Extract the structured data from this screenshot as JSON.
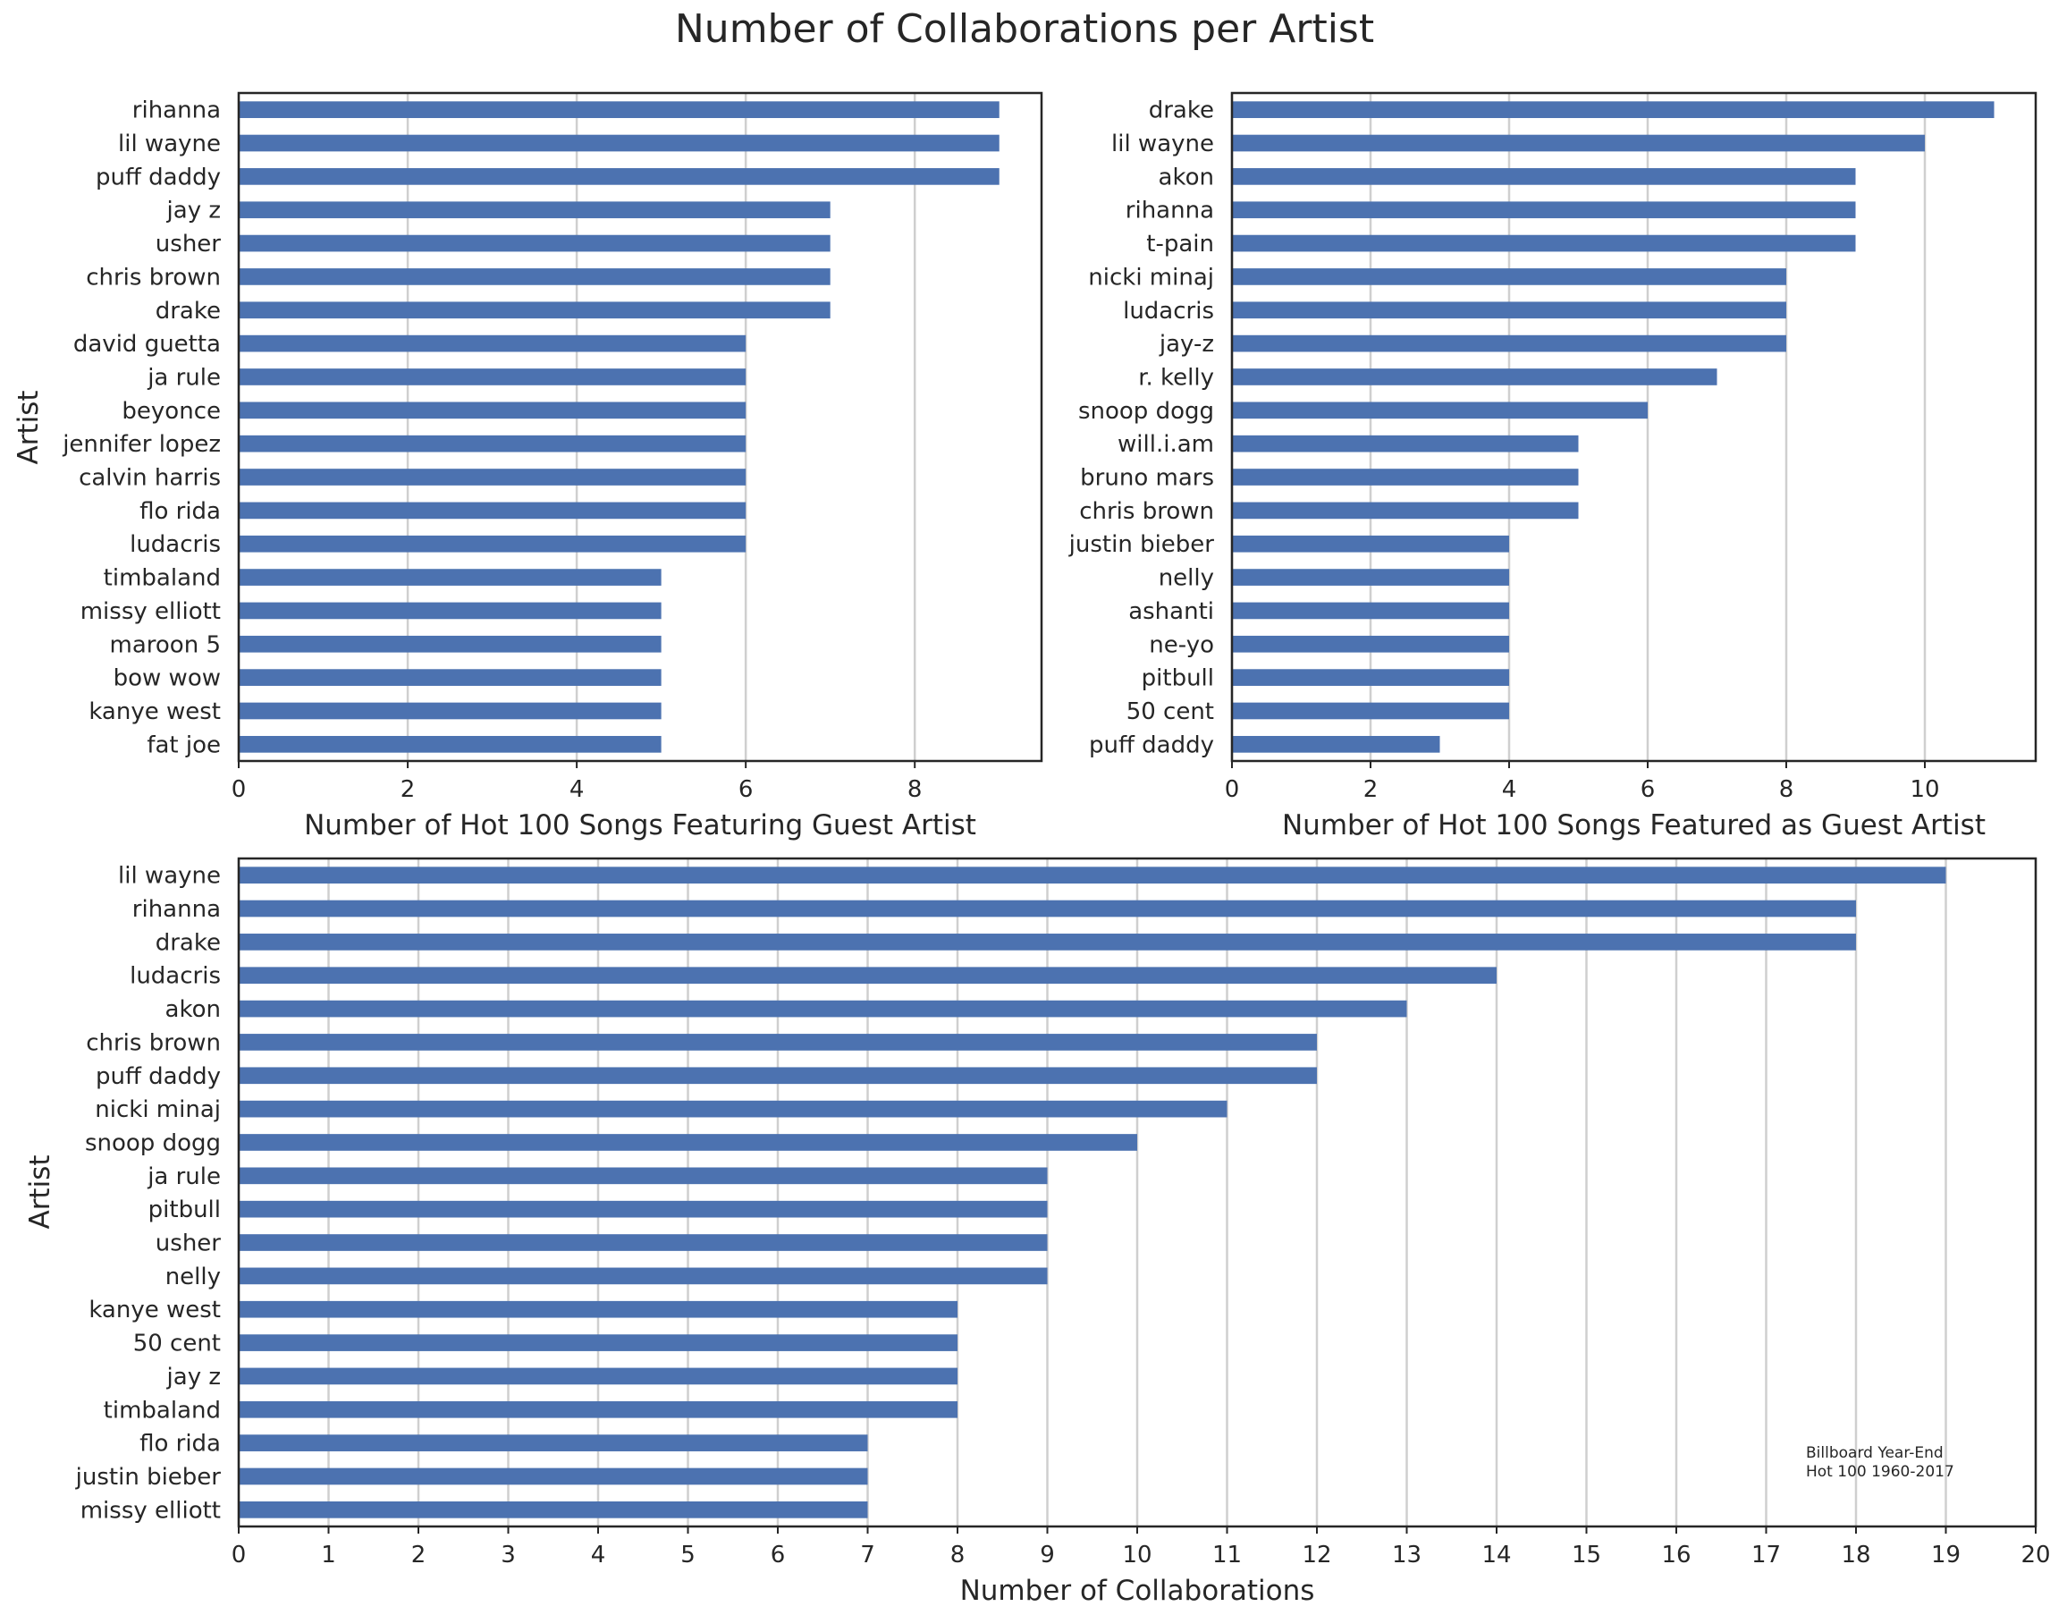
{
  "figure": {
    "suptitle": "Number of Collaborations per Artist",
    "bar_color": "#4c72b0",
    "grid_color": "#cfcfcf",
    "annotation": [
      "Billboard Year-End",
      "Hot 100 1960-2017"
    ]
  },
  "chart_data": [
    {
      "type": "bar",
      "orientation": "horizontal",
      "xlabel": "Number of Hot 100 Songs Featuring Guest Artist",
      "ylabel": "Artist",
      "xlim": [
        0,
        9.5
      ],
      "xticks": [
        0,
        2,
        4,
        6,
        8
      ],
      "grid": "vertical",
      "categories": [
        "rihanna",
        "lil wayne",
        "puff daddy",
        "jay z",
        "usher",
        "chris brown",
        "drake",
        "david guetta",
        "ja rule",
        "beyonce",
        "jennifer lopez",
        "calvin harris",
        "flo rida",
        "ludacris",
        "timbaland",
        "missy elliott",
        "maroon 5",
        "bow wow",
        "kanye west",
        "fat joe"
      ],
      "values": [
        9,
        9,
        9,
        7,
        7,
        7,
        7,
        6,
        6,
        6,
        6,
        6,
        6,
        6,
        5,
        5,
        5,
        5,
        5,
        5
      ]
    },
    {
      "type": "bar",
      "orientation": "horizontal",
      "xlabel": "Number of Hot 100 Songs Featured as Guest Artist",
      "ylabel": "",
      "xlim": [
        0,
        11.6
      ],
      "xticks": [
        0,
        2,
        4,
        6,
        8,
        10
      ],
      "grid": "vertical",
      "categories": [
        "drake",
        "lil wayne",
        "akon",
        "rihanna",
        "t-pain",
        "nicki minaj",
        "ludacris",
        "jay-z",
        "r. kelly",
        "snoop dogg",
        "will.i.am",
        "bruno mars",
        "chris brown",
        "justin bieber",
        "nelly",
        "ashanti",
        "ne-yo",
        "pitbull",
        "50 cent",
        "puff daddy"
      ],
      "values": [
        11,
        10,
        9,
        9,
        9,
        8,
        8,
        8,
        7,
        6,
        5,
        5,
        5,
        4,
        4,
        4,
        4,
        4,
        4,
        3
      ]
    },
    {
      "type": "bar",
      "orientation": "horizontal",
      "xlabel": "Number of Collaborations",
      "ylabel": "Artist",
      "xlim": [
        0,
        20
      ],
      "xticks": [
        0,
        1,
        2,
        3,
        4,
        5,
        6,
        7,
        8,
        9,
        10,
        11,
        12,
        13,
        14,
        15,
        16,
        17,
        18,
        19,
        20
      ],
      "grid": "vertical",
      "categories": [
        "lil wayne",
        "rihanna",
        "drake",
        "ludacris",
        "akon",
        "chris brown",
        "puff daddy",
        "nicki minaj",
        "snoop dogg",
        "ja rule",
        "pitbull",
        "usher",
        "nelly",
        "kanye west",
        "50 cent",
        "jay z",
        "timbaland",
        "flo rida",
        "justin bieber",
        "missy elliott"
      ],
      "values": [
        19,
        18,
        18,
        14,
        13,
        12,
        12,
        11,
        10,
        9,
        9,
        9,
        9,
        8,
        8,
        8,
        8,
        7,
        7,
        7
      ]
    }
  ]
}
